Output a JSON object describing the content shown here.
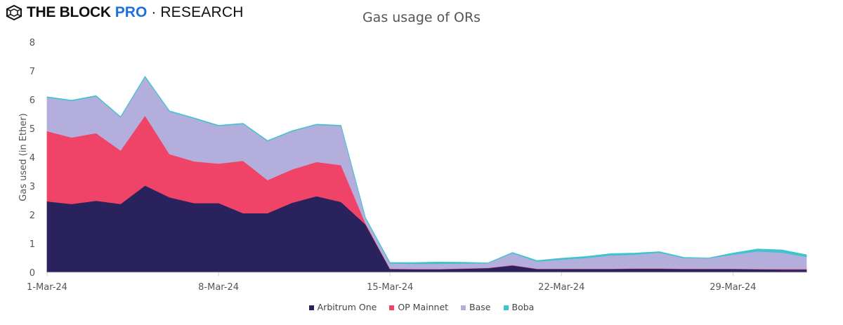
{
  "logo": {
    "brand": "THE BLOCK",
    "pro": "PRO",
    "sep": "·",
    "section": "RESEARCH"
  },
  "chart_data": {
    "type": "area",
    "stacked": true,
    "title": "Gas usage of ORs",
    "xlabel": "",
    "ylabel": "Gas used (in Ether)",
    "ylim": [
      0,
      8
    ],
    "yticks": [
      0,
      1,
      2,
      3,
      4,
      5,
      6,
      7,
      8
    ],
    "x": [
      "1-Mar-24",
      "2-Mar-24",
      "3-Mar-24",
      "4-Mar-24",
      "5-Mar-24",
      "6-Mar-24",
      "7-Mar-24",
      "8-Mar-24",
      "9-Mar-24",
      "10-Mar-24",
      "11-Mar-24",
      "12-Mar-24",
      "13-Mar-24",
      "14-Mar-24",
      "15-Mar-24",
      "16-Mar-24",
      "17-Mar-24",
      "18-Mar-24",
      "19-Mar-24",
      "20-Mar-24",
      "21-Mar-24",
      "22-Mar-24",
      "23-Mar-24",
      "24-Mar-24",
      "25-Mar-24",
      "26-Mar-24",
      "27-Mar-24",
      "28-Mar-24",
      "29-Mar-24",
      "30-Mar-24",
      "31-Mar-24",
      "1-Apr-24"
    ],
    "xtick_labels": [
      {
        "index": 0,
        "label": "1-Mar-24"
      },
      {
        "index": 7,
        "label": "8-Mar-24"
      },
      {
        "index": 14,
        "label": "15-Mar-24"
      },
      {
        "index": 21,
        "label": "22-Mar-24"
      },
      {
        "index": 28,
        "label": "29-Mar-24"
      }
    ],
    "legend_position": "bottom",
    "series": [
      {
        "name": "Arbitrum One",
        "color": "#2a225c",
        "values": [
          2.47,
          2.38,
          2.49,
          2.38,
          3.02,
          2.61,
          2.41,
          2.41,
          2.06,
          2.06,
          2.42,
          2.65,
          2.45,
          1.67,
          0.12,
          0.11,
          0.11,
          0.13,
          0.15,
          0.24,
          0.12,
          0.12,
          0.12,
          0.12,
          0.13,
          0.13,
          0.12,
          0.12,
          0.12,
          0.11,
          0.1,
          0.1
        ]
      },
      {
        "name": "OP Mainnet",
        "color": "#ef4467",
        "values": [
          2.44,
          2.31,
          2.35,
          1.86,
          2.43,
          1.5,
          1.45,
          1.37,
          1.82,
          1.15,
          1.16,
          1.19,
          1.28,
          0.04,
          0.01,
          0.01,
          0.01,
          0.01,
          0.01,
          0.02,
          0.01,
          0.01,
          0.01,
          0.01,
          0.01,
          0.01,
          0.01,
          0.01,
          0.01,
          0.01,
          0.02,
          0.02
        ]
      },
      {
        "name": "Base",
        "color": "#b4aedd",
        "values": [
          1.17,
          1.27,
          1.28,
          1.15,
          1.34,
          1.48,
          1.49,
          1.31,
          1.28,
          1.35,
          1.32,
          1.29,
          1.36,
          0.17,
          0.18,
          0.18,
          0.18,
          0.17,
          0.16,
          0.41,
          0.25,
          0.32,
          0.37,
          0.46,
          0.48,
          0.55,
          0.37,
          0.36,
          0.49,
          0.61,
          0.57,
          0.42
        ]
      },
      {
        "name": "Boba",
        "color": "#3dc4cc",
        "values": [
          0.02,
          0.02,
          0.02,
          0.02,
          0.02,
          0.02,
          0.02,
          0.02,
          0.02,
          0.02,
          0.02,
          0.02,
          0.02,
          0.02,
          0.03,
          0.04,
          0.06,
          0.04,
          0.01,
          0.02,
          0.03,
          0.04,
          0.05,
          0.06,
          0.05,
          0.03,
          0.02,
          0.01,
          0.05,
          0.08,
          0.09,
          0.07
        ]
      }
    ]
  }
}
